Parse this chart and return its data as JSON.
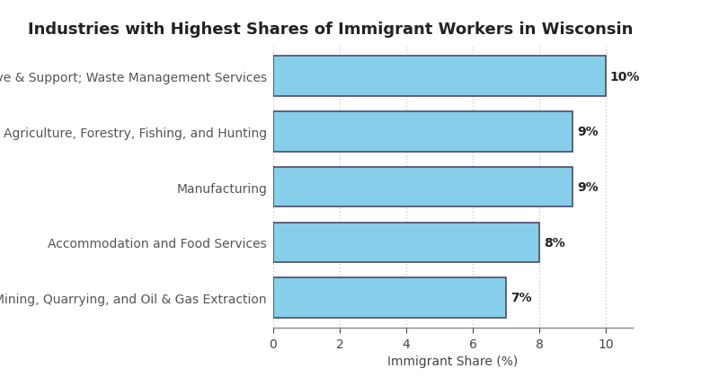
{
  "title": "Industries with Highest Shares of Immigrant Workers in Wisconsin",
  "categories": [
    "Mining, Quarrying, and Oil & Gas Extraction",
    "Accommodation and Food Services",
    "Manufacturing",
    "Agriculture, Forestry, Fishing, and Hunting",
    "Administrative & Support; Waste Management Services"
  ],
  "values": [
    7,
    8,
    9,
    9,
    10
  ],
  "labels": [
    "7%",
    "8%",
    "9%",
    "9%",
    "10%"
  ],
  "bar_color": "#87CEEB",
  "bar_edgecolor": "#4a4a6a",
  "xlim": [
    0,
    10.8
  ],
  "xticks": [
    0,
    2,
    4,
    6,
    8,
    10
  ],
  "xlabel": "Immigrant Share (%)",
  "title_fontsize": 13,
  "label_fontsize": 10,
  "tick_fontsize": 10,
  "annotation_fontsize": 10,
  "background_color": "#ffffff",
  "grid_color": "#cccccc",
  "bar_height": 0.72
}
